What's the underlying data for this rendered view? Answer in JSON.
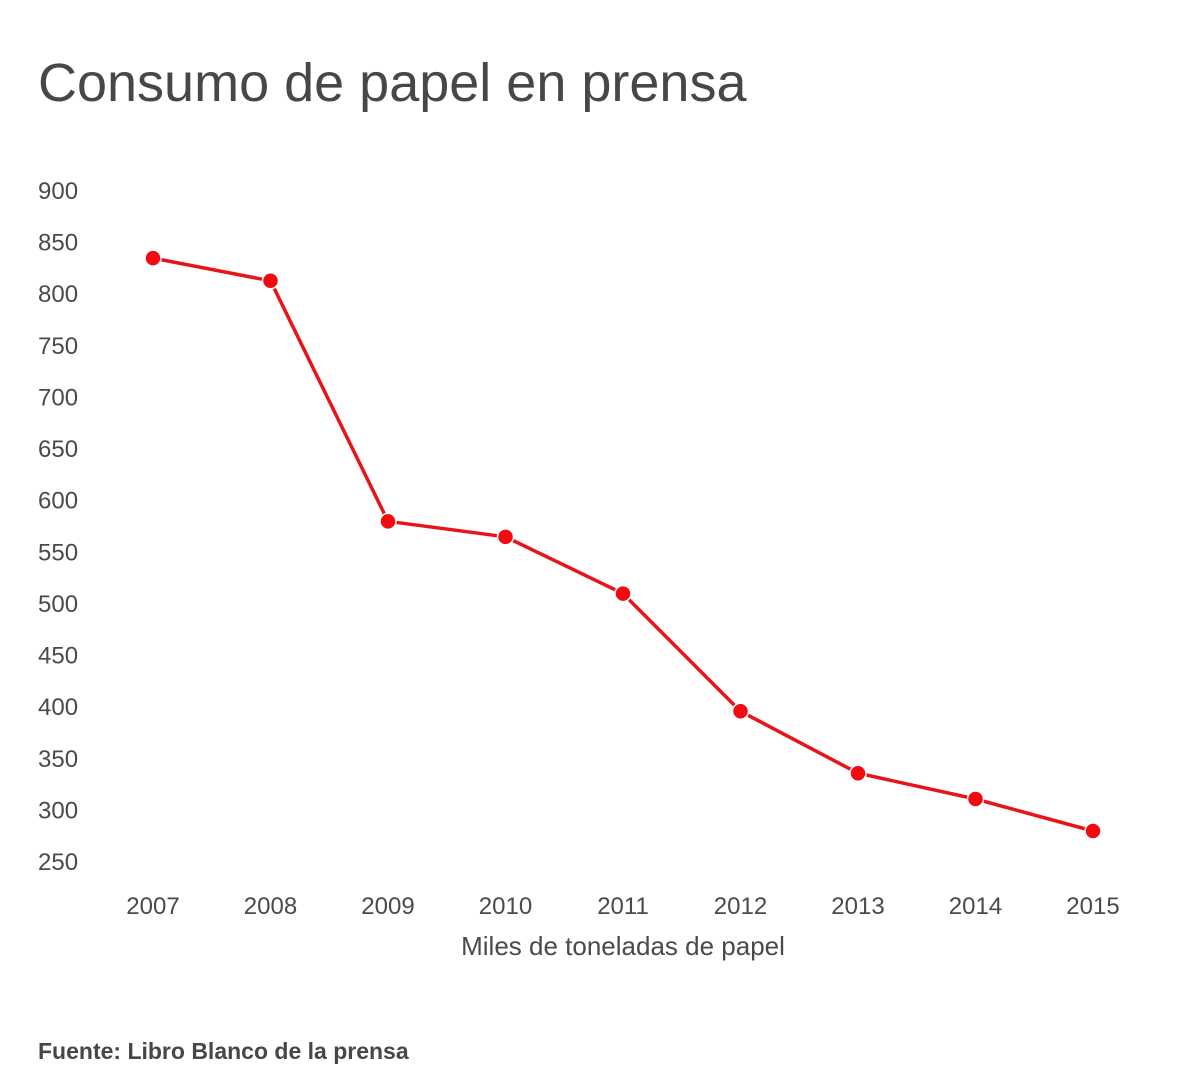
{
  "title": "Consumo de papel en prensa",
  "source": "Fuente: Libro Blanco de la prensa",
  "colors": {
    "line": "#e8141a",
    "point": "#f20a10",
    "text": "#4a4a4a"
  },
  "chart_data": {
    "type": "line",
    "title": "Consumo de papel en prensa",
    "xlabel": "Miles de toneladas de papel",
    "ylabel": "",
    "categories": [
      "2007",
      "2008",
      "2009",
      "2010",
      "2011",
      "2012",
      "2013",
      "2014",
      "2015"
    ],
    "values": [
      835,
      813,
      580,
      565,
      510,
      396,
      336,
      311,
      280
    ],
    "yticks": [
      900,
      850,
      800,
      750,
      700,
      650,
      600,
      550,
      500,
      450,
      400,
      350,
      300,
      250
    ],
    "ylim": [
      250,
      900
    ],
    "grid": false,
    "legend": "none"
  }
}
